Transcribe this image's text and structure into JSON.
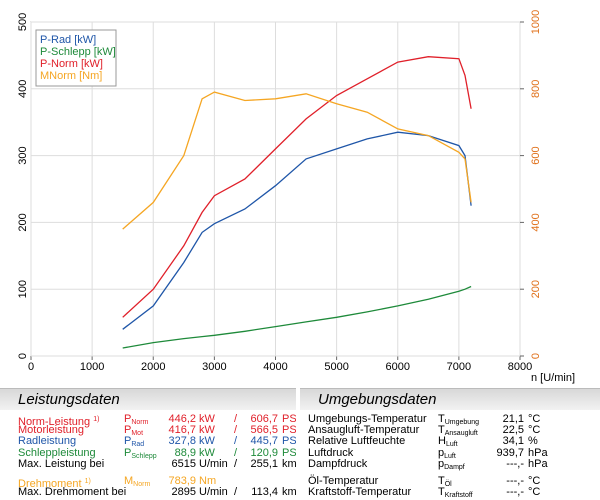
{
  "chart_data": {
    "type": "line",
    "xlabel": "n [U/min]",
    "x": [
      1500,
      2000,
      2500,
      2800,
      3000,
      3500,
      4000,
      4500,
      5000,
      5500,
      6000,
      6500,
      7000,
      7100,
      7200
    ],
    "xlim": [
      0,
      8000
    ],
    "xticks": [
      0,
      1000,
      2000,
      3000,
      4000,
      5000,
      6000,
      7000,
      8000
    ],
    "ylim": [
      0,
      500
    ],
    "yticks": [
      0,
      100,
      200,
      300,
      400,
      500
    ],
    "y2lim": [
      0,
      1000
    ],
    "y2ticks": [
      0,
      200,
      400,
      600,
      800,
      1000
    ],
    "y2color": "#e0701a",
    "grid": true,
    "series": [
      {
        "name": "P-Rad [kW]",
        "color": "#1f56a8",
        "values": [
          40,
          75,
          140,
          185,
          198,
          220,
          255,
          295,
          310,
          325,
          335,
          330,
          315,
          300,
          225
        ]
      },
      {
        "name": "P-Schlepp [kW]",
        "color": "#1e8a3a",
        "values": [
          12,
          20,
          26,
          29,
          31,
          37,
          44,
          51,
          58,
          66,
          75,
          85,
          97,
          100,
          104
        ]
      },
      {
        "name": "P-Norm [kW]",
        "color": "#e0202a",
        "values": [
          58,
          100,
          165,
          215,
          240,
          265,
          310,
          355,
          390,
          415,
          440,
          448,
          445,
          420,
          370
        ]
      },
      {
        "name": "MNorm [Nm]",
        "color": "#f5a623",
        "axis": "y2",
        "values": [
          380,
          460,
          600,
          770,
          790,
          765,
          770,
          785,
          755,
          730,
          680,
          660,
          610,
          590,
          460
        ]
      }
    ]
  },
  "panels": [
    {
      "title": "Leistungsdaten",
      "groups": [
        [
          {
            "label": "Norm-Leistung",
            "note": "1)",
            "symbol": {
              "main": "P",
              "sub": "Norm"
            },
            "value": "446,2",
            "unit": "kW",
            "sep": "/",
            "value2": "606,7",
            "unit2": "PS",
            "color": "#e0202a"
          },
          {
            "label": "Motorleistung",
            "symbol": {
              "main": "P",
              "sub": "Mot"
            },
            "value": "416,7",
            "unit": "kW",
            "sep": "/",
            "value2": "566,5",
            "unit2": "PS",
            "color": "#e0202a"
          },
          {
            "label": "Radleistung",
            "symbol": {
              "main": "P",
              "sub": "Rad"
            },
            "value": "327,8",
            "unit": "kW",
            "sep": "/",
            "value2": "445,7",
            "unit2": "PS",
            "color": "#1f56a8"
          },
          {
            "label": "Schleppleistung",
            "symbol": {
              "main": "P",
              "sub": "Schlepp"
            },
            "value": "88,9",
            "unit": "kW",
            "sep": "/",
            "value2": "120,9",
            "unit2": "PS",
            "color": "#1e8a3a"
          },
          {
            "label": "Max. Leistung bei",
            "value": "6515",
            "unit": "U/min",
            "sep": "/",
            "value2": "255,1",
            "unit2": "km/h",
            "color": "#000000"
          }
        ],
        [
          {
            "label": "Drehmoment",
            "note": "1)",
            "symbol": {
              "main": "M",
              "sub": "Norm"
            },
            "value": "783,9",
            "unit": "Nm",
            "color": "#f5a623"
          },
          {
            "label": "Max. Drehmoment bei",
            "value": "2895",
            "unit": "U/min",
            "sep": "/",
            "value2": "113,4",
            "unit2": "km/h",
            "color": "#000000"
          }
        ]
      ]
    },
    {
      "title": "Umgebungsdaten",
      "groups": [
        [
          {
            "label": "Umgebungs-Temperatur",
            "symbol": {
              "main": "T",
              "sub": "Umgebung"
            },
            "value": "21,1",
            "unit": "°C",
            "color": "#000000"
          },
          {
            "label": "Ansaugluft-Temperatur",
            "symbol": {
              "main": "T",
              "sub": "Ansaugluft"
            },
            "value": "22,5",
            "unit": "°C",
            "color": "#000000"
          },
          {
            "label": "Relative Luftfeuchte",
            "symbol": {
              "main": "H",
              "sub": "Luft"
            },
            "value": "34,1",
            "unit": "%",
            "color": "#000000"
          },
          {
            "label": "Luftdruck",
            "symbol": {
              "main": "p",
              "sub": "Luft"
            },
            "value": "939,7",
            "unit": "hPa",
            "color": "#000000"
          },
          {
            "label": "Dampfdruck",
            "symbol": {
              "main": "p",
              "sub": "Dampf"
            },
            "value": "---,-",
            "unit": "hPa",
            "color": "#000000"
          }
        ],
        [
          {
            "label": "Öl-Temperatur",
            "symbol": {
              "main": "T",
              "sub": "Öl"
            },
            "value": "---,-",
            "unit": "°C",
            "color": "#000000"
          },
          {
            "label": "Kraftstoff-Temperatur",
            "symbol": {
              "main": "T",
              "sub": "Kraftstoff"
            },
            "value": "---,-",
            "unit": "°C",
            "color": "#000000"
          }
        ]
      ]
    }
  ]
}
